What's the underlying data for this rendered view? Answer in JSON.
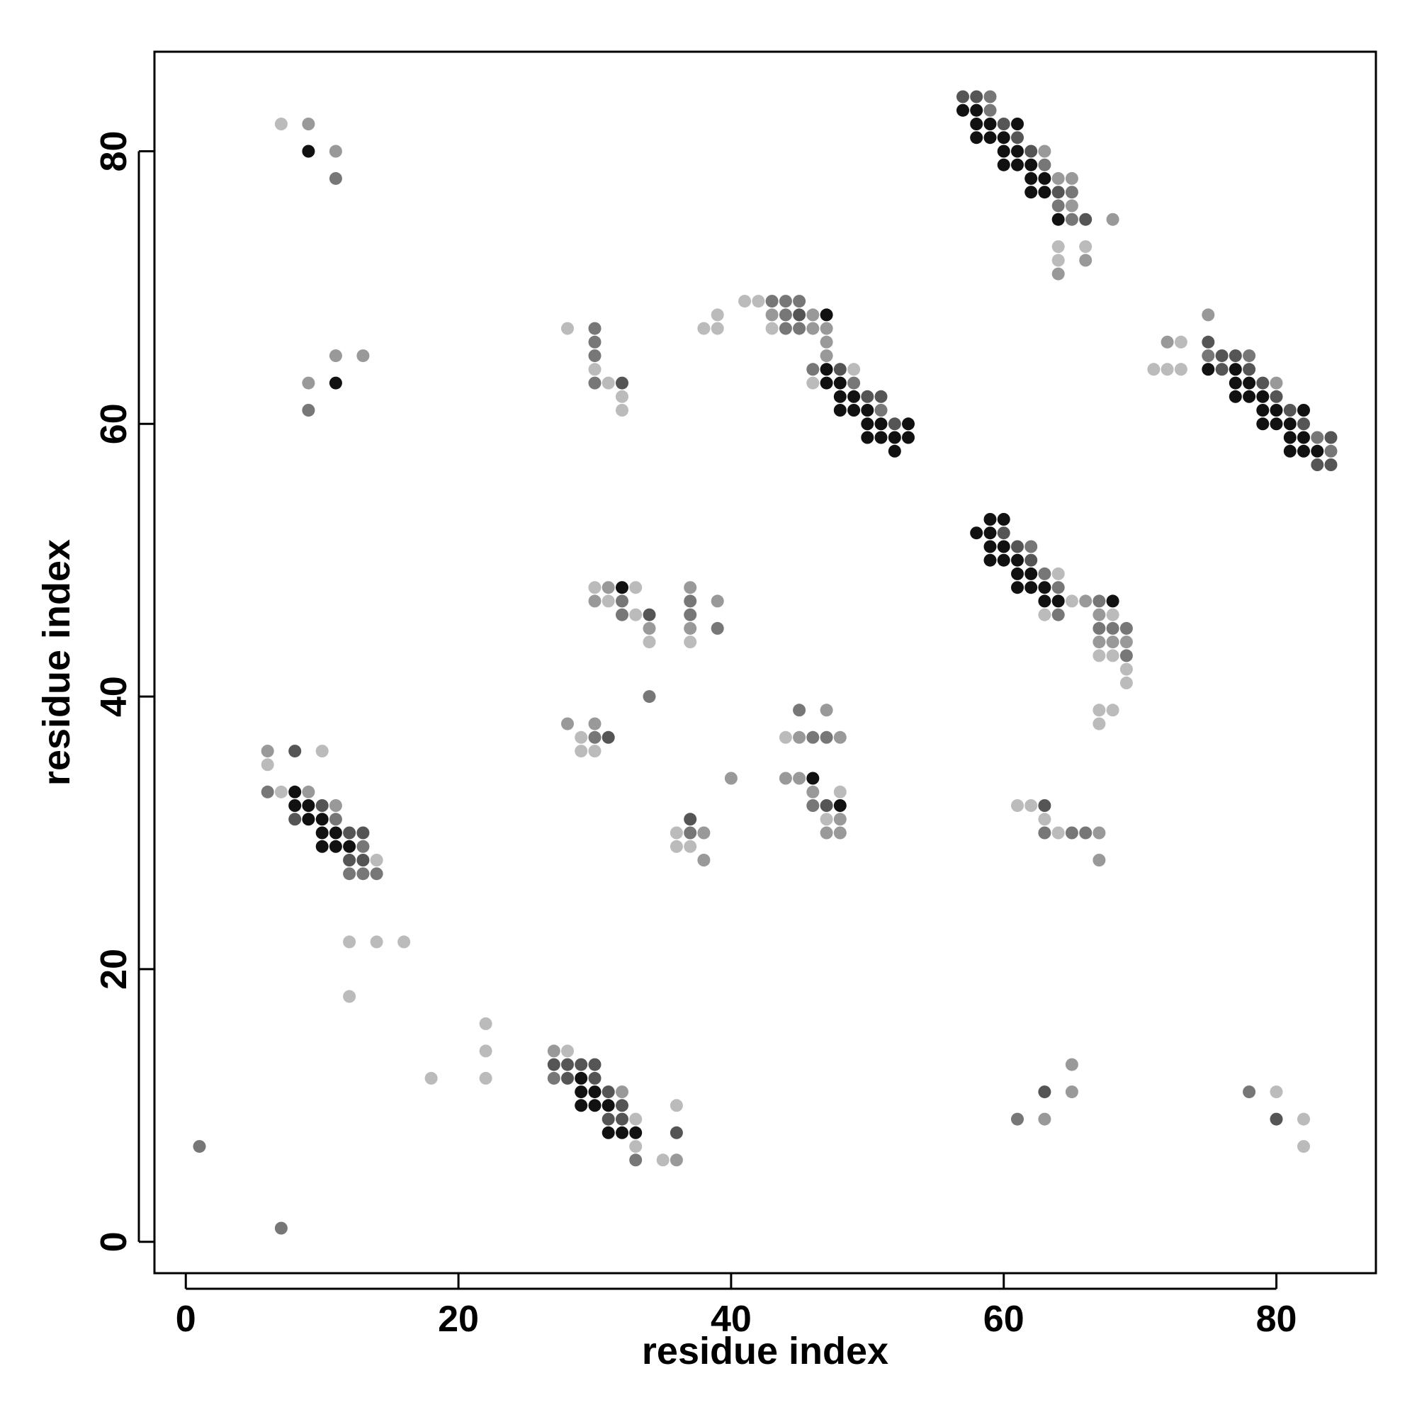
{
  "chart_data": {
    "type": "scatter",
    "title": "",
    "xlabel": "residue index",
    "ylabel": "residue index",
    "xlim": [
      -2.3,
      87.3
    ],
    "ylim": [
      -2.3,
      87.3
    ],
    "x_ticks": [
      0,
      20,
      40,
      60,
      80
    ],
    "y_ticks": [
      0,
      20,
      40,
      60,
      80
    ],
    "grid": false,
    "legend": "none",
    "encoding": "gray level = contact strength (5 = darkest)",
    "shade_colors": {
      "1": "#bbbbbb",
      "2": "#999999",
      "3": "#777777",
      "4": "#555555",
      "5": "#111111"
    },
    "points": [
      [
        1,
        7,
        3
      ],
      [
        7,
        1,
        3
      ],
      [
        7,
        82,
        1
      ],
      [
        9,
        82,
        2
      ],
      [
        9,
        80,
        5
      ],
      [
        11,
        80,
        2
      ],
      [
        11,
        78,
        3
      ],
      [
        9,
        63,
        2
      ],
      [
        9,
        61,
        3
      ],
      [
        11,
        65,
        2
      ],
      [
        11,
        63,
        5
      ],
      [
        13,
        65,
        2
      ],
      [
        6,
        36,
        2
      ],
      [
        6,
        35,
        1
      ],
      [
        8,
        36,
        4
      ],
      [
        10,
        36,
        1
      ],
      [
        6,
        33,
        3
      ],
      [
        7,
        33,
        1
      ],
      [
        8,
        33,
        5
      ],
      [
        9,
        33,
        2
      ],
      [
        8,
        32,
        5
      ],
      [
        9,
        32,
        5
      ],
      [
        10,
        32,
        4
      ],
      [
        11,
        32,
        2
      ],
      [
        8,
        31,
        4
      ],
      [
        9,
        31,
        5
      ],
      [
        10,
        31,
        5
      ],
      [
        11,
        31,
        3
      ],
      [
        10,
        30,
        5
      ],
      [
        11,
        30,
        5
      ],
      [
        12,
        30,
        4
      ],
      [
        13,
        30,
        4
      ],
      [
        10,
        29,
        5
      ],
      [
        11,
        29,
        5
      ],
      [
        12,
        29,
        5
      ],
      [
        13,
        29,
        3
      ],
      [
        12,
        28,
        4
      ],
      [
        13,
        28,
        4
      ],
      [
        14,
        28,
        1
      ],
      [
        12,
        27,
        3
      ],
      [
        13,
        27,
        3
      ],
      [
        14,
        27,
        3
      ],
      [
        12,
        22,
        1
      ],
      [
        14,
        22,
        1
      ],
      [
        16,
        22,
        1
      ],
      [
        12,
        18,
        1
      ],
      [
        18,
        12,
        1
      ],
      [
        22,
        16,
        1
      ],
      [
        22,
        14,
        1
      ],
      [
        22,
        12,
        1
      ],
      [
        27,
        14,
        2
      ],
      [
        28,
        14,
        1
      ],
      [
        27,
        13,
        4
      ],
      [
        28,
        13,
        4
      ],
      [
        29,
        13,
        4
      ],
      [
        30,
        13,
        4
      ],
      [
        27,
        12,
        3
      ],
      [
        28,
        12,
        4
      ],
      [
        29,
        12,
        5
      ],
      [
        30,
        12,
        4
      ],
      [
        29,
        11,
        5
      ],
      [
        30,
        11,
        5
      ],
      [
        31,
        11,
        4
      ],
      [
        32,
        11,
        2
      ],
      [
        29,
        10,
        5
      ],
      [
        30,
        10,
        5
      ],
      [
        31,
        10,
        5
      ],
      [
        32,
        10,
        4
      ],
      [
        31,
        9,
        4
      ],
      [
        32,
        9,
        4
      ],
      [
        33,
        9,
        1
      ],
      [
        31,
        8,
        5
      ],
      [
        32,
        8,
        5
      ],
      [
        33,
        8,
        5
      ],
      [
        33,
        7,
        1
      ],
      [
        33,
        6,
        3
      ],
      [
        35,
        6,
        1
      ],
      [
        36,
        6,
        2
      ],
      [
        36,
        8,
        4
      ],
      [
        36,
        10,
        1
      ],
      [
        28,
        67,
        1
      ],
      [
        30,
        67,
        3
      ],
      [
        30,
        66,
        3
      ],
      [
        30,
        65,
        3
      ],
      [
        30,
        64,
        1
      ],
      [
        30,
        63,
        3
      ],
      [
        31,
        63,
        1
      ],
      [
        32,
        63,
        4
      ],
      [
        32,
        62,
        1
      ],
      [
        32,
        61,
        1
      ],
      [
        30,
        48,
        1
      ],
      [
        31,
        48,
        2
      ],
      [
        32,
        48,
        5
      ],
      [
        33,
        48,
        1
      ],
      [
        30,
        47,
        2
      ],
      [
        31,
        47,
        1
      ],
      [
        32,
        47,
        3
      ],
      [
        32,
        46,
        3
      ],
      [
        33,
        46,
        1
      ],
      [
        34,
        46,
        4
      ],
      [
        34,
        45,
        2
      ],
      [
        34,
        44,
        1
      ],
      [
        34,
        40,
        3
      ],
      [
        37,
        48,
        2
      ],
      [
        37,
        47,
        3
      ],
      [
        37,
        46,
        3
      ],
      [
        37,
        45,
        2
      ],
      [
        37,
        44,
        1
      ],
      [
        39,
        47,
        2
      ],
      [
        39,
        45,
        3
      ],
      [
        28,
        38,
        2
      ],
      [
        30,
        38,
        2
      ],
      [
        29,
        37,
        1
      ],
      [
        30,
        37,
        3
      ],
      [
        31,
        37,
        4
      ],
      [
        29,
        36,
        1
      ],
      [
        30,
        36,
        1
      ],
      [
        36,
        30,
        1
      ],
      [
        37,
        30,
        3
      ],
      [
        38,
        30,
        2
      ],
      [
        37,
        31,
        4
      ],
      [
        36,
        29,
        1
      ],
      [
        37,
        29,
        1
      ],
      [
        38,
        28,
        2
      ],
      [
        40,
        34,
        2
      ],
      [
        45,
        39,
        3
      ],
      [
        47,
        39,
        2
      ],
      [
        44,
        37,
        1
      ],
      [
        45,
        37,
        2
      ],
      [
        46,
        37,
        3
      ],
      [
        47,
        37,
        3
      ],
      [
        48,
        37,
        2
      ],
      [
        44,
        34,
        2
      ],
      [
        45,
        34,
        2
      ],
      [
        46,
        34,
        5
      ],
      [
        46,
        33,
        2
      ],
      [
        48,
        33,
        1
      ],
      [
        46,
        32,
        3
      ],
      [
        47,
        32,
        4
      ],
      [
        48,
        32,
        5
      ],
      [
        47,
        31,
        1
      ],
      [
        48,
        31,
        2
      ],
      [
        47,
        30,
        2
      ],
      [
        48,
        30,
        2
      ],
      [
        38,
        67,
        1
      ],
      [
        39,
        67,
        1
      ],
      [
        39,
        68,
        1
      ],
      [
        41,
        69,
        1
      ],
      [
        42,
        69,
        1
      ],
      [
        43,
        69,
        3
      ],
      [
        44,
        69,
        3
      ],
      [
        45,
        69,
        3
      ],
      [
        43,
        68,
        2
      ],
      [
        44,
        68,
        3
      ],
      [
        45,
        68,
        4
      ],
      [
        46,
        68,
        2
      ],
      [
        47,
        68,
        5
      ],
      [
        43,
        67,
        1
      ],
      [
        44,
        67,
        3
      ],
      [
        45,
        67,
        3
      ],
      [
        46,
        67,
        2
      ],
      [
        47,
        67,
        2
      ],
      [
        47,
        66,
        2
      ],
      [
        47,
        65,
        2
      ],
      [
        46,
        64,
        3
      ],
      [
        47,
        64,
        5
      ],
      [
        48,
        64,
        4
      ],
      [
        49,
        64,
        1
      ],
      [
        46,
        63,
        1
      ],
      [
        47,
        63,
        5
      ],
      [
        48,
        63,
        5
      ],
      [
        49,
        63,
        3
      ],
      [
        48,
        62,
        5
      ],
      [
        49,
        62,
        5
      ],
      [
        50,
        62,
        4
      ],
      [
        51,
        62,
        4
      ],
      [
        48,
        61,
        5
      ],
      [
        49,
        61,
        5
      ],
      [
        50,
        61,
        5
      ],
      [
        51,
        61,
        3
      ],
      [
        50,
        60,
        5
      ],
      [
        51,
        60,
        5
      ],
      [
        52,
        60,
        4
      ],
      [
        53,
        60,
        5
      ],
      [
        50,
        59,
        5
      ],
      [
        51,
        59,
        5
      ],
      [
        52,
        59,
        5
      ],
      [
        53,
        59,
        5
      ],
      [
        52,
        58,
        5
      ],
      [
        57,
        84,
        4
      ],
      [
        58,
        84,
        4
      ],
      [
        59,
        84,
        3
      ],
      [
        57,
        83,
        5
      ],
      [
        58,
        83,
        5
      ],
      [
        59,
        83,
        3
      ],
      [
        58,
        82,
        5
      ],
      [
        59,
        82,
        5
      ],
      [
        60,
        82,
        4
      ],
      [
        61,
        82,
        5
      ],
      [
        58,
        81,
        5
      ],
      [
        59,
        81,
        5
      ],
      [
        60,
        81,
        5
      ],
      [
        61,
        81,
        4
      ],
      [
        60,
        80,
        5
      ],
      [
        61,
        80,
        5
      ],
      [
        62,
        80,
        4
      ],
      [
        63,
        80,
        2
      ],
      [
        60,
        79,
        5
      ],
      [
        61,
        79,
        5
      ],
      [
        62,
        79,
        5
      ],
      [
        63,
        79,
        3
      ],
      [
        62,
        78,
        5
      ],
      [
        63,
        78,
        5
      ],
      [
        64,
        78,
        2
      ],
      [
        65,
        78,
        2
      ],
      [
        62,
        77,
        5
      ],
      [
        63,
        77,
        5
      ],
      [
        64,
        77,
        4
      ],
      [
        65,
        77,
        3
      ],
      [
        64,
        76,
        3
      ],
      [
        65,
        76,
        2
      ],
      [
        64,
        75,
        5
      ],
      [
        65,
        75,
        3
      ],
      [
        66,
        75,
        4
      ],
      [
        68,
        75,
        2
      ],
      [
        64,
        73,
        1
      ],
      [
        66,
        73,
        1
      ],
      [
        64,
        72,
        1
      ],
      [
        66,
        72,
        2
      ],
      [
        64,
        71,
        2
      ],
      [
        58,
        52,
        5
      ],
      [
        59,
        53,
        5
      ],
      [
        60,
        53,
        5
      ],
      [
        59,
        52,
        5
      ],
      [
        60,
        52,
        4
      ],
      [
        59,
        51,
        5
      ],
      [
        60,
        51,
        5
      ],
      [
        61,
        51,
        4
      ],
      [
        62,
        51,
        3
      ],
      [
        59,
        50,
        5
      ],
      [
        60,
        50,
        5
      ],
      [
        61,
        50,
        5
      ],
      [
        62,
        50,
        4
      ],
      [
        61,
        49,
        5
      ],
      [
        62,
        49,
        5
      ],
      [
        63,
        49,
        3
      ],
      [
        64,
        49,
        1
      ],
      [
        61,
        48,
        5
      ],
      [
        62,
        48,
        5
      ],
      [
        63,
        48,
        5
      ],
      [
        64,
        48,
        3
      ],
      [
        63,
        47,
        5
      ],
      [
        64,
        47,
        5
      ],
      [
        65,
        47,
        1
      ],
      [
        66,
        47,
        2
      ],
      [
        67,
        47,
        3
      ],
      [
        68,
        47,
        5
      ],
      [
        63,
        46,
        1
      ],
      [
        64,
        46,
        3
      ],
      [
        67,
        46,
        2
      ],
      [
        68,
        46,
        1
      ],
      [
        67,
        45,
        3
      ],
      [
        68,
        45,
        3
      ],
      [
        69,
        45,
        3
      ],
      [
        67,
        44,
        2
      ],
      [
        68,
        44,
        2
      ],
      [
        69,
        44,
        2
      ],
      [
        67,
        43,
        1
      ],
      [
        68,
        43,
        1
      ],
      [
        69,
        43,
        3
      ],
      [
        69,
        42,
        1
      ],
      [
        69,
        41,
        1
      ],
      [
        67,
        39,
        1
      ],
      [
        68,
        39,
        1
      ],
      [
        67,
        38,
        1
      ],
      [
        61,
        32,
        1
      ],
      [
        62,
        32,
        1
      ],
      [
        63,
        32,
        4
      ],
      [
        63,
        31,
        1
      ],
      [
        63,
        30,
        3
      ],
      [
        64,
        30,
        1
      ],
      [
        65,
        30,
        3
      ],
      [
        66,
        30,
        3
      ],
      [
        67,
        30,
        2
      ],
      [
        67,
        28,
        2
      ],
      [
        61,
        9,
        3
      ],
      [
        63,
        11,
        4
      ],
      [
        63,
        9,
        2
      ],
      [
        65,
        13,
        2
      ],
      [
        65,
        11,
        2
      ],
      [
        78,
        11,
        3
      ],
      [
        80,
        11,
        1
      ],
      [
        80,
        9,
        4
      ],
      [
        82,
        9,
        1
      ],
      [
        82,
        7,
        1
      ],
      [
        71,
        64,
        1
      ],
      [
        72,
        64,
        1
      ],
      [
        73,
        64,
        1
      ],
      [
        72,
        66,
        2
      ],
      [
        73,
        66,
        1
      ],
      [
        75,
        68,
        2
      ],
      [
        75,
        66,
        4
      ],
      [
        75,
        65,
        3
      ],
      [
        76,
        65,
        4
      ],
      [
        77,
        65,
        4
      ],
      [
        78,
        65,
        3
      ],
      [
        75,
        64,
        5
      ],
      [
        76,
        64,
        4
      ],
      [
        77,
        64,
        5
      ],
      [
        78,
        64,
        4
      ],
      [
        77,
        63,
        5
      ],
      [
        78,
        63,
        5
      ],
      [
        79,
        63,
        4
      ],
      [
        80,
        63,
        2
      ],
      [
        77,
        62,
        5
      ],
      [
        78,
        62,
        5
      ],
      [
        79,
        62,
        5
      ],
      [
        80,
        62,
        4
      ],
      [
        79,
        61,
        5
      ],
      [
        80,
        61,
        5
      ],
      [
        81,
        61,
        4
      ],
      [
        82,
        61,
        5
      ],
      [
        79,
        60,
        5
      ],
      [
        80,
        60,
        5
      ],
      [
        81,
        60,
        5
      ],
      [
        82,
        60,
        4
      ],
      [
        81,
        59,
        5
      ],
      [
        82,
        59,
        5
      ],
      [
        83,
        59,
        3
      ],
      [
        84,
        59,
        4
      ],
      [
        81,
        58,
        5
      ],
      [
        82,
        58,
        5
      ],
      [
        83,
        58,
        5
      ],
      [
        84,
        58,
        3
      ],
      [
        83,
        57,
        4
      ],
      [
        84,
        57,
        4
      ]
    ]
  }
}
